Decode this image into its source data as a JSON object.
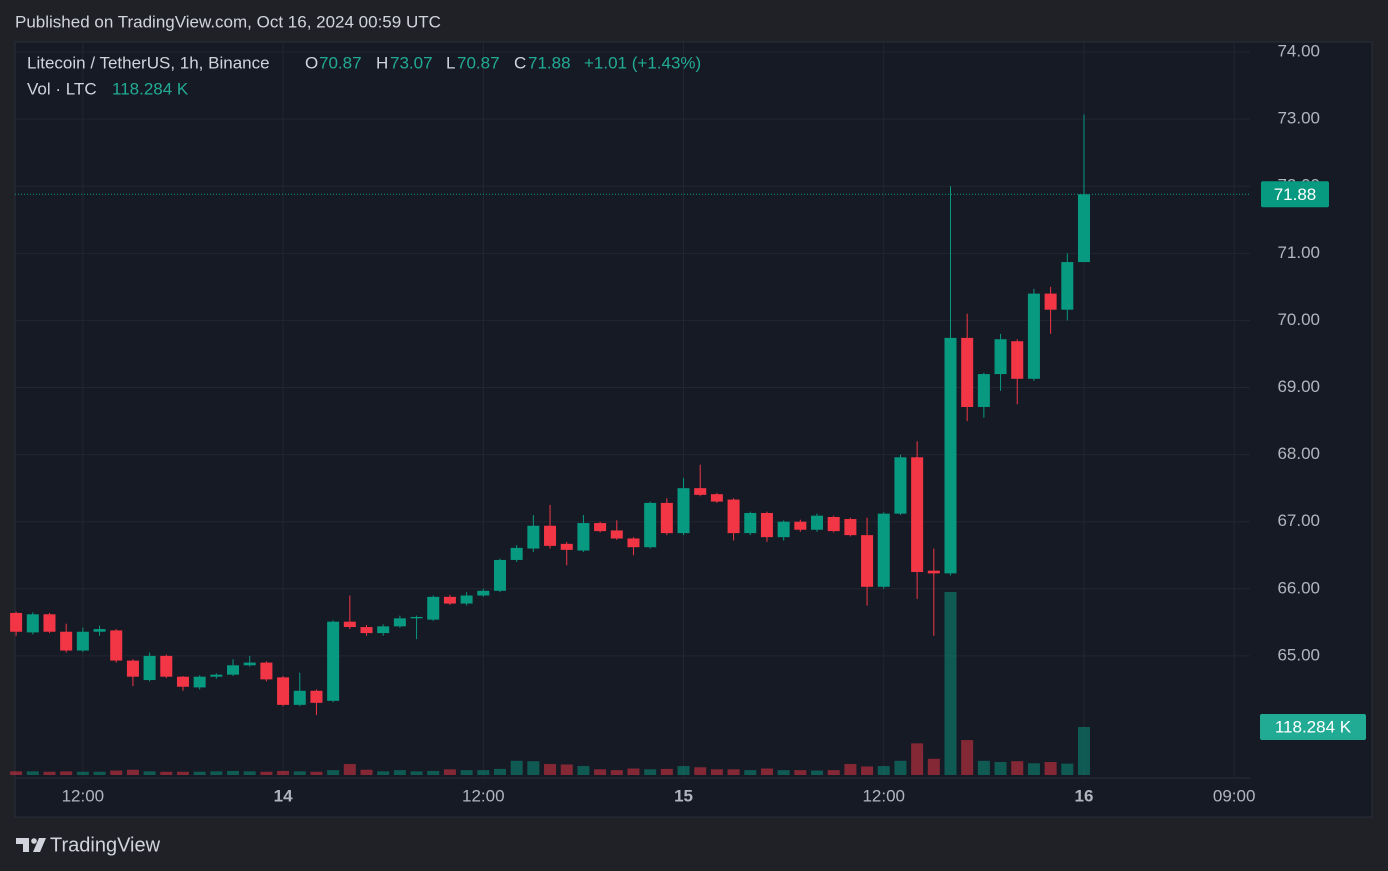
{
  "chart_data": {
    "type": "candlestick",
    "published": "Published on TradingView.com, Oct 16, 2024 00:59 UTC",
    "title": "Litecoin / TetherUS, 1h, Binance",
    "ohlc_labels": [
      "O",
      "H",
      "L",
      "C"
    ],
    "change": "+1.01 (+1.43%)",
    "brand": "TradingView",
    "up_color": "#089981",
    "down_color": "#f23645",
    "grid": true,
    "x": [
      "13 08:00",
      "13 09:00",
      "13 10:00",
      "13 11:00",
      "13 12:00",
      "13 13:00",
      "13 14:00",
      "13 15:00",
      "13 16:00",
      "13 17:00",
      "13 18:00",
      "13 19:00",
      "13 20:00",
      "13 21:00",
      "13 22:00",
      "13 23:00",
      "14 00:00",
      "14 01:00",
      "14 02:00",
      "14 03:00",
      "14 04:00",
      "14 05:00",
      "14 06:00",
      "14 07:00",
      "14 08:00",
      "14 09:00",
      "14 10:00",
      "14 11:00",
      "14 12:00",
      "14 13:00",
      "14 14:00",
      "14 15:00",
      "14 16:00",
      "14 17:00",
      "14 18:00",
      "14 19:00",
      "14 20:00",
      "14 21:00",
      "14 22:00",
      "14 23:00",
      "15 00:00",
      "15 01:00",
      "15 02:00",
      "15 03:00",
      "15 04:00",
      "15 05:00",
      "15 06:00",
      "15 07:00",
      "15 08:00",
      "15 09:00",
      "15 10:00",
      "15 11:00",
      "15 12:00",
      "15 13:00",
      "15 14:00",
      "15 15:00",
      "15 16:00",
      "15 17:00",
      "15 18:00",
      "15 19:00",
      "15 20:00",
      "15 21:00",
      "15 22:00",
      "15 23:00",
      "16 00:00"
    ],
    "open": [
      65.64,
      65.35,
      65.62,
      65.36,
      65.08,
      65.36,
      65.38,
      64.93,
      64.64,
      65.0,
      64.69,
      64.53,
      64.69,
      64.72,
      64.86,
      64.9,
      64.68,
      64.27,
      64.48,
      64.33,
      65.51,
      65.43,
      65.34,
      65.44,
      65.56,
      65.54,
      65.88,
      65.78,
      65.9,
      65.97,
      66.43,
      66.6,
      66.94,
      66.67,
      66.57,
      66.98,
      66.87,
      66.75,
      66.62,
      67.28,
      66.83,
      67.5,
      67.41,
      67.33,
      66.83,
      67.13,
      66.77,
      67.0,
      66.88,
      67.07,
      67.04,
      66.8,
      66.03,
      67.12,
      67.96,
      66.27,
      66.23,
      69.74,
      68.71,
      69.2,
      69.69,
      69.13,
      70.4,
      70.16,
      70.87
    ],
    "high": [
      65.66,
      65.65,
      65.64,
      65.48,
      65.42,
      65.45,
      65.4,
      64.95,
      65.05,
      65.02,
      64.7,
      64.71,
      64.74,
      64.95,
      65.0,
      64.92,
      64.7,
      64.75,
      64.5,
      65.53,
      65.9,
      65.46,
      65.47,
      65.6,
      65.6,
      65.9,
      65.91,
      65.95,
      66.0,
      66.45,
      66.65,
      67.1,
      67.25,
      66.7,
      67.1,
      67.0,
      67.02,
      66.77,
      67.3,
      67.35,
      67.65,
      67.85,
      67.43,
      67.35,
      67.15,
      67.15,
      67.02,
      67.03,
      67.12,
      67.09,
      67.06,
      67.06,
      67.14,
      68.0,
      68.2,
      66.6,
      72.0,
      70.1,
      69.22,
      69.8,
      69.72,
      70.47,
      70.5,
      71.0,
      73.07
    ],
    "low": [
      65.3,
      65.32,
      65.34,
      65.05,
      65.06,
      65.3,
      64.9,
      64.55,
      64.62,
      64.67,
      64.48,
      64.5,
      64.66,
      64.7,
      64.84,
      64.62,
      64.25,
      64.25,
      64.12,
      64.31,
      65.4,
      65.3,
      65.3,
      65.42,
      65.25,
      65.52,
      65.76,
      65.75,
      65.88,
      65.95,
      66.4,
      66.55,
      66.6,
      66.35,
      66.55,
      66.84,
      66.73,
      66.5,
      66.6,
      66.8,
      66.8,
      67.38,
      67.28,
      66.72,
      66.8,
      66.7,
      66.72,
      66.85,
      66.85,
      66.84,
      66.78,
      65.75,
      66.0,
      67.1,
      65.85,
      65.3,
      66.2,
      68.5,
      68.55,
      68.95,
      68.75,
      69.1,
      69.8,
      70.0,
      70.87
    ],
    "close": [
      65.36,
      65.62,
      65.36,
      65.08,
      65.36,
      65.4,
      64.93,
      64.69,
      65.0,
      64.69,
      64.54,
      64.69,
      64.72,
      64.86,
      64.9,
      64.65,
      64.27,
      64.48,
      64.3,
      65.51,
      65.43,
      65.34,
      65.44,
      65.56,
      65.58,
      65.88,
      65.78,
      65.9,
      65.97,
      66.43,
      66.61,
      66.94,
      66.64,
      66.58,
      66.98,
      66.86,
      66.75,
      66.62,
      67.28,
      66.83,
      67.5,
      67.4,
      67.3,
      66.83,
      67.13,
      66.77,
      67.0,
      66.88,
      67.09,
      66.86,
      66.8,
      66.03,
      67.12,
      67.96,
      66.25,
      66.23,
      69.74,
      68.71,
      69.2,
      69.72,
      69.13,
      70.4,
      70.16,
      70.87,
      71.88
    ],
    "volume": {
      "name": "Vol · LTC",
      "values": [
        9,
        9,
        8,
        9,
        8,
        8,
        11,
        13,
        9,
        8,
        8,
        8,
        9,
        10,
        9,
        8,
        10,
        9,
        8,
        12,
        27,
        13,
        9,
        12,
        9,
        10,
        14,
        12,
        12,
        15,
        35,
        34,
        27,
        26,
        22,
        14,
        12,
        16,
        14,
        15,
        22,
        19,
        14,
        14,
        12,
        16,
        12,
        12,
        11,
        12,
        27,
        21,
        22,
        35,
        78,
        40,
        451,
        86,
        35,
        32,
        34,
        29,
        32,
        28,
        118.284
      ],
      "value_labels": {
        "64": "118.284 K"
      }
    },
    "xlim": [
      "13 07:56",
      "16 09:57"
    ],
    "xticks": [
      {
        "value": "13 12:00",
        "label": "12:00"
      },
      {
        "value": "14 00:00",
        "label": "14"
      },
      {
        "value": "14 12:00",
        "label": "12:00"
      },
      {
        "value": "15 00:00",
        "label": "15"
      },
      {
        "value": "15 12:00",
        "label": "12:00"
      },
      {
        "value": "16 00:00",
        "label": "16"
      },
      {
        "value": "16 09:00",
        "label": "09:00"
      }
    ],
    "ylim": [
      63.18,
      74.15
    ],
    "yticks": [
      {
        "value": 65,
        "label": "65.00"
      },
      {
        "value": 66,
        "label": "66.00"
      },
      {
        "value": 67,
        "label": "67.00"
      },
      {
        "value": 68,
        "label": "68.00"
      },
      {
        "value": 69,
        "label": "69.00"
      },
      {
        "value": 70,
        "label": "70.00"
      },
      {
        "value": 71,
        "label": "71.00"
      },
      {
        "value": 72,
        "label": "72.00"
      },
      {
        "value": 73,
        "label": "73.00"
      },
      {
        "value": 74,
        "label": "74.00"
      }
    ],
    "y2lim": [
      0,
      1806
    ]
  }
}
